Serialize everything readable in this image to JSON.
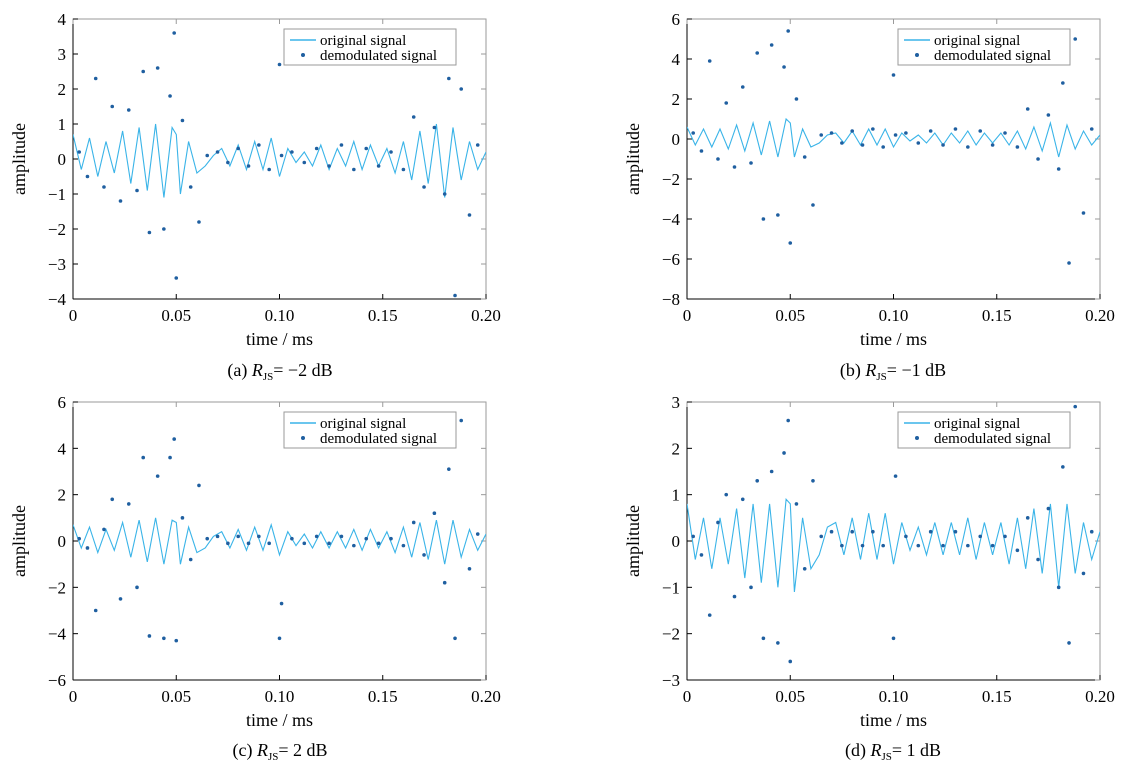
{
  "colors": {
    "original": "#3ab4e8",
    "demodulated": "#1f5fa0",
    "axis": "#000000",
    "frame": "#9a9a9a"
  },
  "chart_data": [
    {
      "type": "line",
      "caption": {
        "prefix": "(a) ",
        "var": "R",
        "sub": "JS",
        "rest": "= −2 dB"
      },
      "xlabel": "time / ms",
      "ylabel": "amplitude",
      "xlim": [
        0,
        0.2
      ],
      "ylim": [
        -4,
        4
      ],
      "xticks": [
        0,
        0.05,
        0.1,
        0.15,
        0.2
      ],
      "xtick_labels": [
        "0",
        "0.05",
        "0.10",
        "0.15",
        "0.20"
      ],
      "yticks": [
        -4,
        -3,
        -2,
        -1,
        0,
        1,
        2,
        3,
        4
      ],
      "ytick_labels": [
        "−4",
        "−3",
        "−2",
        "−1",
        "0",
        "1",
        "2",
        "3",
        "4"
      ],
      "legend": {
        "placement": "top-right",
        "entries": [
          "original signal",
          "demodulated signal"
        ]
      },
      "series": [
        {
          "name": "original signal",
          "style": "line",
          "x": [
            0,
            0.004,
            0.008,
            0.012,
            0.016,
            0.02,
            0.024,
            0.028,
            0.032,
            0.036,
            0.04,
            0.044,
            0.048,
            0.05,
            0.052,
            0.056,
            0.06,
            0.064,
            0.068,
            0.072,
            0.076,
            0.08,
            0.084,
            0.088,
            0.092,
            0.096,
            0.1,
            0.104,
            0.108,
            0.112,
            0.116,
            0.12,
            0.124,
            0.128,
            0.132,
            0.136,
            0.14,
            0.144,
            0.148,
            0.152,
            0.156,
            0.16,
            0.164,
            0.168,
            0.172,
            0.176,
            0.18,
            0.184,
            0.188,
            0.192,
            0.196,
            0.2
          ],
          "y": [
            0.7,
            -0.3,
            0.6,
            -0.5,
            0.5,
            -0.4,
            0.8,
            -0.7,
            0.9,
            -0.9,
            1.0,
            -1.1,
            0.9,
            0.7,
            -1.0,
            0.5,
            -0.4,
            -0.2,
            0.1,
            0.3,
            -0.2,
            0.4,
            -0.3,
            0.5,
            -0.3,
            0.6,
            -0.5,
            0.3,
            -0.1,
            0.2,
            -0.2,
            0.4,
            -0.3,
            0.3,
            -0.2,
            0.5,
            -0.3,
            0.4,
            -0.2,
            0.3,
            -0.4,
            0.5,
            -0.6,
            0.8,
            -0.7,
            1.0,
            -1.1,
            0.9,
            -0.6,
            0.5,
            -0.3,
            0.2
          ]
        },
        {
          "name": "demodulated signal",
          "style": "dots",
          "x": [
            0.003,
            0.007,
            0.011,
            0.015,
            0.019,
            0.023,
            0.027,
            0.031,
            0.034,
            0.037,
            0.041,
            0.044,
            0.047,
            0.049,
            0.05,
            0.053,
            0.057,
            0.061,
            0.065,
            0.07,
            0.075,
            0.08,
            0.085,
            0.09,
            0.095,
            0.1,
            0.101,
            0.106,
            0.112,
            0.118,
            0.124,
            0.13,
            0.136,
            0.142,
            0.148,
            0.154,
            0.16,
            0.165,
            0.17,
            0.175,
            0.18,
            0.182,
            0.185,
            0.188,
            0.192,
            0.196
          ],
          "y": [
            0.2,
            -0.5,
            2.3,
            -0.8,
            1.5,
            -1.2,
            1.4,
            -0.9,
            2.5,
            -2.1,
            2.6,
            -2.0,
            1.8,
            3.6,
            -3.4,
            1.1,
            -0.8,
            -1.8,
            0.1,
            0.2,
            -0.1,
            0.3,
            -0.2,
            0.4,
            -0.3,
            2.7,
            0.1,
            0.2,
            -0.1,
            0.3,
            -0.2,
            0.4,
            -0.3,
            0.3,
            -0.2,
            0.2,
            -0.3,
            1.2,
            -0.8,
            0.9,
            -1.0,
            2.3,
            -3.9,
            2.0,
            -1.6,
            0.4
          ]
        }
      ]
    },
    {
      "type": "line",
      "caption": {
        "prefix": "(b) ",
        "var": "R",
        "sub": "JS",
        "rest": "= −1 dB"
      },
      "xlabel": "time / ms",
      "ylabel": "amplitude",
      "xlim": [
        0,
        0.2
      ],
      "ylim": [
        -8,
        6
      ],
      "xticks": [
        0,
        0.05,
        0.1,
        0.15,
        0.2
      ],
      "xtick_labels": [
        "0",
        "0.05",
        "0.10",
        "0.15",
        "0.20"
      ],
      "yticks": [
        -8,
        -6,
        -4,
        -2,
        0,
        2,
        4,
        6
      ],
      "ytick_labels": [
        "−8",
        "−6",
        "−4",
        "−2",
        "0",
        "2",
        "4",
        "6"
      ],
      "legend": {
        "placement": "top-right",
        "entries": [
          "original signal",
          "demodulated signal"
        ]
      },
      "series": [
        {
          "name": "original signal",
          "style": "line",
          "x": [
            0,
            0.004,
            0.008,
            0.012,
            0.016,
            0.02,
            0.024,
            0.028,
            0.032,
            0.036,
            0.04,
            0.044,
            0.048,
            0.05,
            0.052,
            0.056,
            0.06,
            0.064,
            0.068,
            0.072,
            0.076,
            0.08,
            0.084,
            0.088,
            0.092,
            0.096,
            0.1,
            0.104,
            0.108,
            0.112,
            0.116,
            0.12,
            0.124,
            0.128,
            0.132,
            0.136,
            0.14,
            0.144,
            0.148,
            0.152,
            0.156,
            0.16,
            0.164,
            0.168,
            0.172,
            0.176,
            0.18,
            0.184,
            0.188,
            0.192,
            0.196,
            0.2
          ],
          "y": [
            0.6,
            -0.3,
            0.5,
            -0.4,
            0.5,
            -0.5,
            0.7,
            -0.6,
            0.8,
            -0.8,
            0.9,
            -0.9,
            1.0,
            0.8,
            -0.9,
            0.5,
            -0.4,
            -0.2,
            0.2,
            0.3,
            -0.2,
            0.4,
            -0.3,
            0.5,
            -0.3,
            0.5,
            -0.4,
            0.3,
            -0.1,
            0.2,
            -0.2,
            0.3,
            -0.3,
            0.3,
            -0.2,
            0.4,
            -0.3,
            0.3,
            -0.2,
            0.3,
            -0.3,
            0.4,
            -0.5,
            0.6,
            -0.6,
            0.8,
            -0.9,
            0.7,
            -0.5,
            0.4,
            -0.3,
            0.2
          ]
        },
        {
          "name": "demodulated signal",
          "style": "dots",
          "x": [
            0.003,
            0.007,
            0.011,
            0.015,
            0.019,
            0.023,
            0.027,
            0.031,
            0.034,
            0.037,
            0.041,
            0.044,
            0.047,
            0.049,
            0.05,
            0.053,
            0.057,
            0.061,
            0.065,
            0.07,
            0.075,
            0.08,
            0.085,
            0.09,
            0.095,
            0.1,
            0.101,
            0.106,
            0.112,
            0.118,
            0.124,
            0.13,
            0.136,
            0.142,
            0.148,
            0.154,
            0.16,
            0.165,
            0.17,
            0.175,
            0.18,
            0.182,
            0.185,
            0.188,
            0.192,
            0.196
          ],
          "y": [
            0.3,
            -0.6,
            3.9,
            -1.0,
            1.8,
            -1.4,
            2.6,
            -1.2,
            4.3,
            -4.0,
            4.7,
            -3.8,
            3.6,
            5.4,
            -5.2,
            2.0,
            -0.9,
            -3.3,
            0.2,
            0.3,
            -0.2,
            0.4,
            -0.3,
            0.5,
            -0.4,
            3.2,
            0.2,
            0.3,
            -0.2,
            0.4,
            -0.3,
            0.5,
            -0.4,
            0.4,
            -0.3,
            0.3,
            -0.4,
            1.5,
            -1.0,
            1.2,
            -1.5,
            2.8,
            -6.2,
            5.0,
            -3.7,
            0.5
          ]
        }
      ]
    },
    {
      "type": "line",
      "caption": {
        "prefix": "(c) ",
        "var": "R",
        "sub": "JS",
        "rest": "= 2 dB"
      },
      "xlabel": "time / ms",
      "ylabel": "amplitude",
      "xlim": [
        0,
        0.2
      ],
      "ylim": [
        -6,
        6
      ],
      "xticks": [
        0,
        0.05,
        0.1,
        0.15,
        0.2
      ],
      "xtick_labels": [
        "0",
        "0.05",
        "0.10",
        "0.15",
        "0.20"
      ],
      "yticks": [
        -6,
        -4,
        -2,
        0,
        2,
        4,
        6
      ],
      "ytick_labels": [
        "−6",
        "−4",
        "−2",
        "0",
        "2",
        "4",
        "6"
      ],
      "legend": {
        "placement": "top-right",
        "entries": [
          "original signal",
          "demodulated signal"
        ]
      },
      "series": [
        {
          "name": "original signal",
          "style": "line",
          "x": [
            0,
            0.004,
            0.008,
            0.012,
            0.016,
            0.02,
            0.024,
            0.028,
            0.032,
            0.036,
            0.04,
            0.044,
            0.048,
            0.05,
            0.052,
            0.056,
            0.06,
            0.064,
            0.068,
            0.072,
            0.076,
            0.08,
            0.084,
            0.088,
            0.092,
            0.096,
            0.1,
            0.104,
            0.108,
            0.112,
            0.116,
            0.12,
            0.124,
            0.128,
            0.132,
            0.136,
            0.14,
            0.144,
            0.148,
            0.152,
            0.156,
            0.16,
            0.164,
            0.168,
            0.172,
            0.176,
            0.18,
            0.184,
            0.188,
            0.192,
            0.196,
            0.2
          ],
          "y": [
            0.7,
            -0.3,
            0.6,
            -0.5,
            0.5,
            -0.4,
            0.8,
            -0.7,
            0.9,
            -0.9,
            1.0,
            -1.0,
            0.9,
            0.8,
            -1.0,
            0.6,
            -0.5,
            -0.3,
            0.2,
            0.4,
            -0.3,
            0.5,
            -0.4,
            0.6,
            -0.4,
            0.7,
            -0.6,
            0.4,
            -0.2,
            0.3,
            -0.3,
            0.4,
            -0.3,
            0.4,
            -0.3,
            0.5,
            -0.4,
            0.5,
            -0.3,
            0.4,
            -0.5,
            0.6,
            -0.7,
            0.8,
            -0.8,
            0.9,
            -1.0,
            0.9,
            -0.7,
            0.5,
            -0.4,
            0.3
          ]
        },
        {
          "name": "demodulated signal",
          "style": "dots",
          "x": [
            0.003,
            0.007,
            0.011,
            0.015,
            0.019,
            0.023,
            0.027,
            0.031,
            0.034,
            0.037,
            0.041,
            0.044,
            0.047,
            0.049,
            0.05,
            0.053,
            0.057,
            0.061,
            0.065,
            0.07,
            0.075,
            0.08,
            0.085,
            0.09,
            0.095,
            0.1,
            0.101,
            0.106,
            0.112,
            0.118,
            0.124,
            0.13,
            0.136,
            0.142,
            0.148,
            0.154,
            0.16,
            0.165,
            0.17,
            0.175,
            0.18,
            0.182,
            0.185,
            0.188,
            0.192,
            0.196
          ],
          "y": [
            0.1,
            -0.3,
            -3.0,
            0.5,
            1.8,
            -2.5,
            1.6,
            -2.0,
            3.6,
            -4.1,
            2.8,
            -4.2,
            3.6,
            4.4,
            -4.3,
            1.0,
            -0.8,
            2.4,
            0.1,
            0.2,
            -0.1,
            0.2,
            -0.1,
            0.2,
            -0.1,
            -4.2,
            -2.7,
            0.1,
            -0.1,
            0.2,
            -0.1,
            0.2,
            -0.2,
            0.1,
            -0.1,
            0.1,
            -0.2,
            0.8,
            -0.6,
            1.2,
            -1.8,
            3.1,
            -4.2,
            5.2,
            -1.2,
            0.3
          ]
        }
      ]
    },
    {
      "type": "line",
      "caption": {
        "prefix": "(d) ",
        "var": "R",
        "sub": "JS",
        "rest": "= 1 dB"
      },
      "xlabel": "time / ms",
      "ylabel": "amplitude",
      "xlim": [
        0,
        0.2
      ],
      "ylim": [
        -3,
        3
      ],
      "xticks": [
        0,
        0.05,
        0.1,
        0.15,
        0.2
      ],
      "xtick_labels": [
        "0",
        "0.05",
        "0.10",
        "0.15",
        "0.20"
      ],
      "yticks": [
        -3,
        -2,
        -1,
        0,
        1,
        2,
        3
      ],
      "ytick_labels": [
        "−3",
        "−2",
        "−1",
        "0",
        "1",
        "2",
        "3"
      ],
      "legend": {
        "placement": "top-right",
        "entries": [
          "original signal",
          "demodulated signal"
        ]
      },
      "series": [
        {
          "name": "original signal",
          "style": "line",
          "x": [
            0,
            0.004,
            0.008,
            0.012,
            0.016,
            0.02,
            0.024,
            0.028,
            0.032,
            0.036,
            0.04,
            0.044,
            0.048,
            0.05,
            0.052,
            0.056,
            0.06,
            0.064,
            0.068,
            0.072,
            0.076,
            0.08,
            0.084,
            0.088,
            0.092,
            0.096,
            0.1,
            0.104,
            0.108,
            0.112,
            0.116,
            0.12,
            0.124,
            0.128,
            0.132,
            0.136,
            0.14,
            0.144,
            0.148,
            0.152,
            0.156,
            0.16,
            0.164,
            0.168,
            0.172,
            0.176,
            0.18,
            0.184,
            0.188,
            0.192,
            0.196,
            0.2
          ],
          "y": [
            0.8,
            -0.4,
            0.5,
            -0.6,
            0.5,
            -0.5,
            0.7,
            -0.8,
            0.8,
            -0.9,
            0.8,
            -1.0,
            0.9,
            0.8,
            -1.1,
            0.5,
            -0.6,
            -0.3,
            0.3,
            0.4,
            -0.3,
            0.5,
            -0.4,
            0.6,
            -0.4,
            0.6,
            -0.5,
            0.4,
            -0.2,
            0.3,
            -0.3,
            0.4,
            -0.3,
            0.4,
            -0.3,
            0.5,
            -0.4,
            0.4,
            -0.3,
            0.4,
            -0.5,
            0.5,
            -0.6,
            0.7,
            -0.7,
            0.8,
            -1.0,
            0.8,
            -0.7,
            0.4,
            -0.4,
            0.2
          ]
        },
        {
          "name": "demodulated signal",
          "style": "dots",
          "x": [
            0.003,
            0.007,
            0.011,
            0.015,
            0.019,
            0.023,
            0.027,
            0.031,
            0.034,
            0.037,
            0.041,
            0.044,
            0.047,
            0.049,
            0.05,
            0.053,
            0.057,
            0.061,
            0.065,
            0.07,
            0.075,
            0.08,
            0.085,
            0.09,
            0.095,
            0.1,
            0.101,
            0.106,
            0.112,
            0.118,
            0.124,
            0.13,
            0.136,
            0.142,
            0.148,
            0.154,
            0.16,
            0.165,
            0.17,
            0.175,
            0.18,
            0.182,
            0.185,
            0.188,
            0.192,
            0.196
          ],
          "y": [
            0.1,
            -0.3,
            -1.6,
            0.4,
            1.0,
            -1.2,
            0.9,
            -1.0,
            1.3,
            -2.1,
            1.5,
            -2.2,
            1.9,
            2.6,
            -2.6,
            0.8,
            -0.6,
            1.3,
            0.1,
            0.2,
            -0.1,
            0.2,
            -0.1,
            0.2,
            -0.1,
            -2.1,
            1.4,
            0.1,
            -0.1,
            0.2,
            -0.1,
            0.2,
            -0.1,
            0.1,
            -0.1,
            0.1,
            -0.2,
            0.5,
            -0.4,
            0.7,
            -1.0,
            1.6,
            -2.2,
            2.9,
            -0.7,
            0.2
          ]
        }
      ]
    }
  ]
}
